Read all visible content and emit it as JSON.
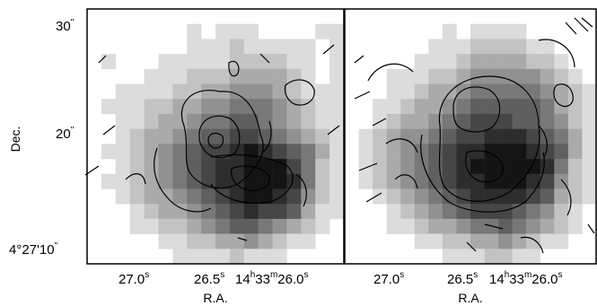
{
  "figure": {
    "panels": [
      {
        "name": "left",
        "x_axis_title": "R.A.",
        "x_tick_labels": [
          {
            "main": "27.0",
            "sup": "s"
          },
          {
            "main": "26.5",
            "sup": "s"
          },
          {
            "main": "14",
            "sup": "h",
            "main2": "33",
            "sup2": "m",
            "main3": "26.0",
            "sup3": "s"
          }
        ],
        "y_axis_title": "Dec.",
        "y_tick_labels": [
          {
            "main": "30",
            "sup": "\""
          },
          {
            "main": "20",
            "sup": "\""
          },
          {
            "main": "4°27'10",
            "sup": "\""
          }
        ]
      },
      {
        "name": "right",
        "x_axis_title": "R.A.",
        "x_tick_labels": [
          {
            "main": "27.0",
            "sup": "s"
          },
          {
            "main": "26.5",
            "sup": "s"
          },
          {
            "main": "14",
            "sup": "h",
            "main2": "33",
            "sup2": "m",
            "main3": "26.0",
            "sup3": "s"
          }
        ]
      }
    ],
    "greyscale": {
      "cols": 18,
      "rows": 17,
      "left_map": [
        "000000000000000000",
        "000000010111000011",
        "000000011121111101",
        "010001111122221101",
        "000011122233332101",
        "001111223344432111",
        "011122334455543211",
        "001123345566543211",
        "001233456677654321",
        "011234567789876531",
        "001234567889997521",
        "011234567889998521",
        "001233456789987421",
        "000123345678776311",
        "000112234566543210",
        "000001122334321100",
        "000000111121110000"
      ],
      "right_map": [
        "000000000000000000",
        "000000010111100000",
        "000000111222211000",
        "000001112333322100",
        "000111223444443210",
        "000112334555554321",
        "001123345666665321",
        "001233456777665421",
        "012344567788876531",
        "012345678899987631",
        "012345678999998521",
        "012345678899987421",
        "001234567888876321",
        "000123456777654210",
        "000112334556543210",
        "000001122334321100",
        "000000011122110000"
      ]
    }
  }
}
